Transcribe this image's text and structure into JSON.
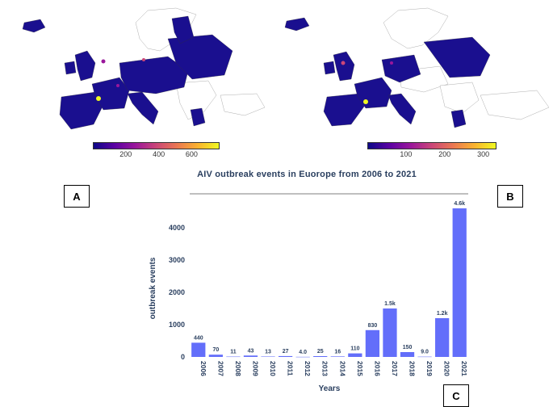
{
  "panels": {
    "a": "A",
    "b": "B",
    "c": "C"
  },
  "colorbar_a": {
    "ticks": [
      "200",
      "400",
      "600"
    ],
    "tick_values": [
      200,
      400,
      600
    ],
    "min": 0,
    "max": 760
  },
  "colorbar_b": {
    "ticks": [
      "100",
      "200",
      "300"
    ],
    "tick_values": [
      100,
      200,
      300
    ],
    "min": 0,
    "max": 330
  },
  "colors": {
    "bar": "#636efa",
    "title": "#2a3f5f",
    "text": "#2a3f5f",
    "map_low": "#0d0887",
    "map_high": "#f0f921"
  },
  "chart_data": {
    "type": "bar",
    "title": "AIV outbreak events in Euorope from 2006 to 2021",
    "xlabel": "Years",
    "ylabel": "outbreak events",
    "categories": [
      "2006",
      "2007",
      "2008",
      "2009",
      "2010",
      "2011",
      "2012",
      "2013",
      "2014",
      "2015",
      "2016",
      "2017",
      "2018",
      "2019",
      "2020",
      "2021"
    ],
    "values": [
      440,
      70,
      11,
      43,
      13,
      27,
      4,
      25,
      16,
      110,
      830,
      1500,
      150,
      9,
      1200,
      4600
    ],
    "labels": [
      "440",
      "70",
      "11",
      "43",
      "13",
      "27",
      "4.0",
      "25",
      "16",
      "110",
      "830",
      "1.5k",
      "150",
      "9.0",
      "1.2k",
      "4.6k"
    ],
    "yticks": [
      0,
      1000,
      2000,
      3000,
      4000
    ],
    "ytick_labels": [
      "0",
      "1000",
      "2000",
      "3000",
      "4000"
    ],
    "ylim": [
      0,
      4850
    ],
    "grid": false,
    "legend": "none"
  }
}
